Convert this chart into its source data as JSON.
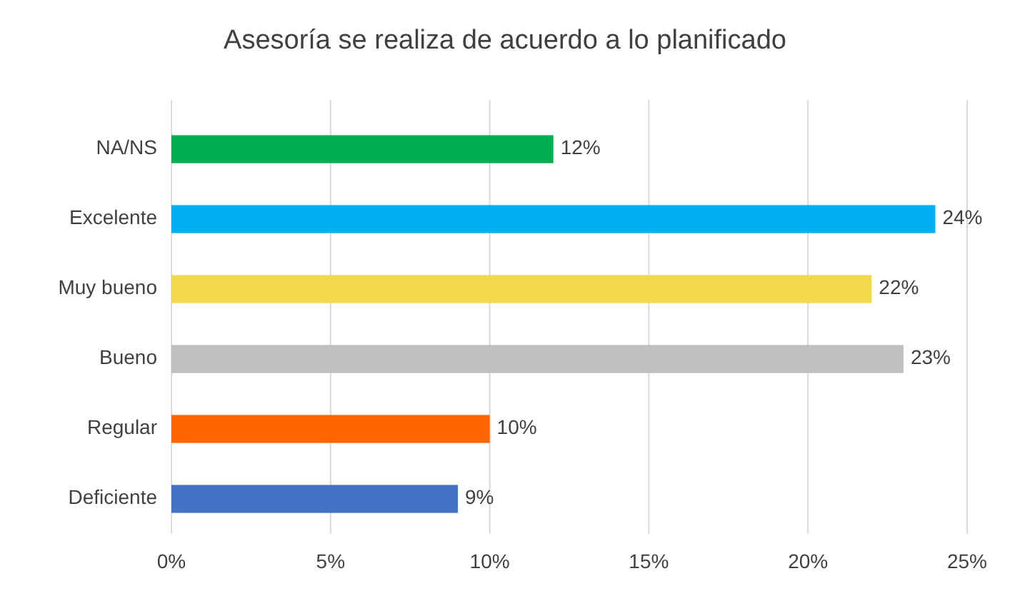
{
  "chart_data": {
    "type": "bar",
    "orientation": "horizontal",
    "title": "Asesoría se realiza de acuerdo a lo planificado",
    "categories": [
      "NA/NS",
      "Excelente",
      "Muy bueno",
      "Bueno",
      "Regular",
      "Deficiente"
    ],
    "values": [
      12,
      24,
      22,
      23,
      10,
      9
    ],
    "colors": [
      "#00b050",
      "#00b0f0",
      "#f2d84a",
      "#bfbfbf",
      "#ff6600",
      "#4472c4"
    ],
    "value_labels": [
      "12%",
      "24%",
      "22%",
      "23%",
      "10%",
      "9%"
    ],
    "xlim": [
      0,
      25
    ],
    "xticks": [
      {
        "value": 0,
        "label": "0%"
      },
      {
        "value": 5,
        "label": "5%"
      },
      {
        "value": 10,
        "label": "10%"
      },
      {
        "value": 15,
        "label": "15%"
      },
      {
        "value": 20,
        "label": "20%"
      },
      {
        "value": 25,
        "label": "25%"
      }
    ],
    "grid": "x"
  }
}
